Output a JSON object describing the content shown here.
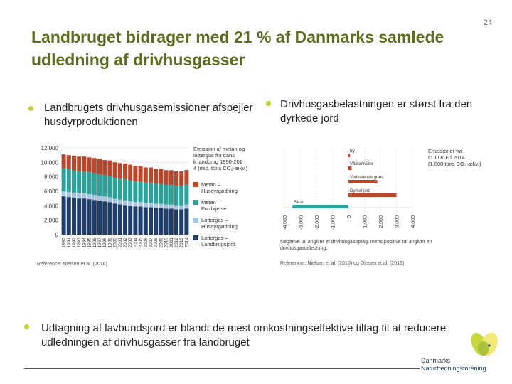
{
  "slide": {
    "number": "24",
    "title": "Landbruget bidrager med 21 % af Danmarks samlede udledning af drivhusgasser",
    "bullets": [
      "Landbrugets drivhusgasemissioner afspejler husdyrproduktionen",
      "Drivhusgasbelastningen er størst fra den dyrkede jord",
      "Udtagning af lavbundsjord er blandt de mest omkostningseffektive tiltag til at reducere udledningen af drivhusgasser fra landbruget"
    ]
  },
  "logo": {
    "line1": "Danmarks",
    "line2": "Naturfredningsforening",
    "colors": [
      "#c8d83c",
      "#f1ea7a",
      "#a9c23a"
    ]
  },
  "chart_data": [
    {
      "type": "bar",
      "stacked": true,
      "title": "Emission af metan og lattergas fra dansk landbrug 1990-2014 (mio. tons CO₂-ækv.)",
      "categories": [
        "1990",
        "1991",
        "1992",
        "1993",
        "1994",
        "1995",
        "1996",
        "1997",
        "1998",
        "1999",
        "2000",
        "2001",
        "2002",
        "2003",
        "2004",
        "2005",
        "2006",
        "2007",
        "2008",
        "2009",
        "2010",
        "2011",
        "2012",
        "2013",
        "2014"
      ],
      "ylim": [
        0,
        12000
      ],
      "yticks": [
        "12.000",
        "10.000",
        "8.000",
        "6.000",
        "4.000",
        "2.000",
        "0"
      ],
      "series": [
        {
          "name": "Lattergas – Landbrugsjord",
          "color": "#1f3e6b",
          "values": [
            5300,
            5200,
            5100,
            5000,
            5000,
            4900,
            4800,
            4700,
            4600,
            4500,
            4300,
            4200,
            4100,
            4000,
            3900,
            3900,
            3800,
            3800,
            3700,
            3700,
            3600,
            3600,
            3500,
            3500,
            3600
          ]
        },
        {
          "name": "Lattergas – Husdyrgødning",
          "color": "#a9c6e0",
          "values": [
            700,
            700,
            700,
            700,
            700,
            690,
            690,
            680,
            680,
            670,
            660,
            650,
            640,
            630,
            620,
            610,
            600,
            600,
            590,
            580,
            580,
            570,
            570,
            560,
            560
          ]
        },
        {
          "name": "Metan – Fordøjelse",
          "color": "#2ba39a",
          "values": [
            3200,
            3150,
            3100,
            3100,
            3050,
            3050,
            3000,
            3000,
            2950,
            2950,
            2900,
            2900,
            2900,
            2850,
            2850,
            2800,
            2800,
            2800,
            2750,
            2750,
            2700,
            2700,
            2700,
            2700,
            2750
          ]
        },
        {
          "name": "Metan – Husdyrgødning",
          "color": "#b8472c",
          "values": [
            1900,
            1950,
            2000,
            2000,
            2050,
            2050,
            2100,
            2100,
            2100,
            2150,
            2150,
            2150,
            2200,
            2200,
            2150,
            2150,
            2100,
            2100,
            2100,
            2050,
            2050,
            2050,
            2000,
            2000,
            2050
          ]
        }
      ],
      "reference": "Reference: Nielsen et al. (2016)"
    },
    {
      "type": "bar",
      "orientation": "horizontal",
      "title": "Emissioner fra LULUCF i 2014 (1.000 tons CO₂-ækv.)",
      "categories": [
        "By",
        "Vådområder",
        "Vedvarende græs",
        "Dyrket jord",
        "Skov"
      ],
      "values": [
        100,
        200,
        1800,
        3000,
        -3500
      ],
      "colors": [
        "#b8472c",
        "#b8472c",
        "#b8472c",
        "#b8472c",
        "#2ba39a"
      ],
      "xlim": [
        -4000,
        4000
      ],
      "xticks": [
        "-4.000",
        "-3.000",
        "-2.000",
        "-1.000",
        "0",
        "1.000",
        "2.000",
        "3.000",
        "4.000"
      ],
      "note": "Negative tal angiver et drivhusgasoptag, mens positive tal angiver en drivhusgasudledning.",
      "reference": "Referencer: Nielsen et al. (2016) og Olesen et al. (2013)"
    }
  ]
}
